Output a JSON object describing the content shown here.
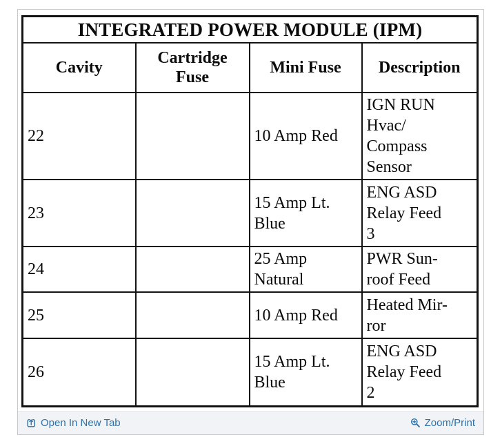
{
  "table": {
    "title": "INTEGRATED POWER MODULE (IPM)",
    "columns": [
      {
        "key": "cavity",
        "label": "Cavity"
      },
      {
        "key": "cartridge-fuse",
        "label": "Cartridge\nFuse"
      },
      {
        "key": "mini-fuse",
        "label": "Mini Fuse"
      },
      {
        "key": "description",
        "label": "Description"
      }
    ],
    "rows": [
      {
        "cavity": "22",
        "cartridge_fuse": "",
        "mini_fuse": "10 Amp Red",
        "description": "IGN RUN\nHvac/\nCompass\nSensor"
      },
      {
        "cavity": "23",
        "cartridge_fuse": "",
        "mini_fuse": "15 Amp Lt.\nBlue",
        "description": "ENG ASD\nRelay Feed\n3"
      },
      {
        "cavity": "24",
        "cartridge_fuse": "",
        "mini_fuse": "25 Amp\nNatural",
        "description": "PWR Sun-\nroof Feed"
      },
      {
        "cavity": "25",
        "cartridge_fuse": "",
        "mini_fuse": "10 Amp Red",
        "description": "Heated Mir-\nror"
      },
      {
        "cavity": "26",
        "cartridge_fuse": "",
        "mini_fuse": "15 Amp Lt.\nBlue",
        "description": "ENG ASD\nRelay Feed\n2"
      }
    ]
  },
  "footer": {
    "open_in_new_tab_label": "Open In New Tab",
    "zoom_print_label": "Zoom/Print",
    "open_icon": "open-in-new-tab-icon",
    "zoom_icon": "magnifier-plus-icon"
  },
  "colors": {
    "link": "#3071a9",
    "table_border": "#121212",
    "footer_background": "#f1f3f6",
    "frame_border": "#c6c9cc"
  }
}
